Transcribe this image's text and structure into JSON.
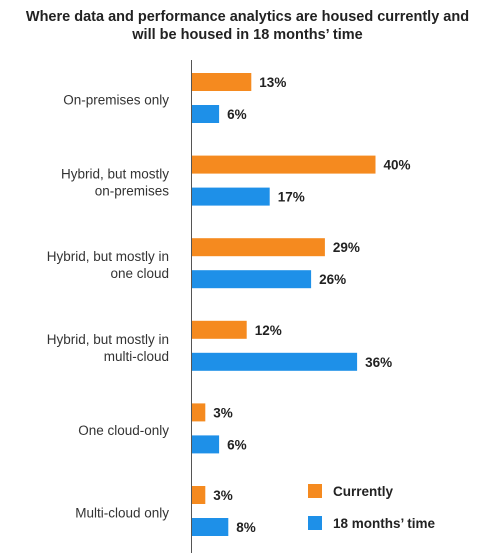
{
  "chart_data": {
    "type": "bar",
    "orientation": "horizontal",
    "title_lines": [
      "Where data and performance analytics are housed currently and",
      "will be housed in 18 months’ time"
    ],
    "categories": [
      [
        "On-premises only"
      ],
      [
        "Hybrid, but mostly",
        "on-premises"
      ],
      [
        "Hybrid, but mostly in",
        "one cloud"
      ],
      [
        "Hybrid, but mostly in",
        "multi-cloud"
      ],
      [
        "One cloud-only"
      ],
      [
        "Multi-cloud only"
      ]
    ],
    "series": [
      {
        "name": "Currently",
        "color": "#F58A1F",
        "values": [
          13,
          40,
          29,
          12,
          3,
          3
        ]
      },
      {
        "name": "18 months’ time",
        "color": "#1E90E8",
        "values": [
          6,
          17,
          26,
          36,
          6,
          8
        ]
      }
    ],
    "value_suffix": "%",
    "legend_position": "bottom-right",
    "grid": false
  }
}
